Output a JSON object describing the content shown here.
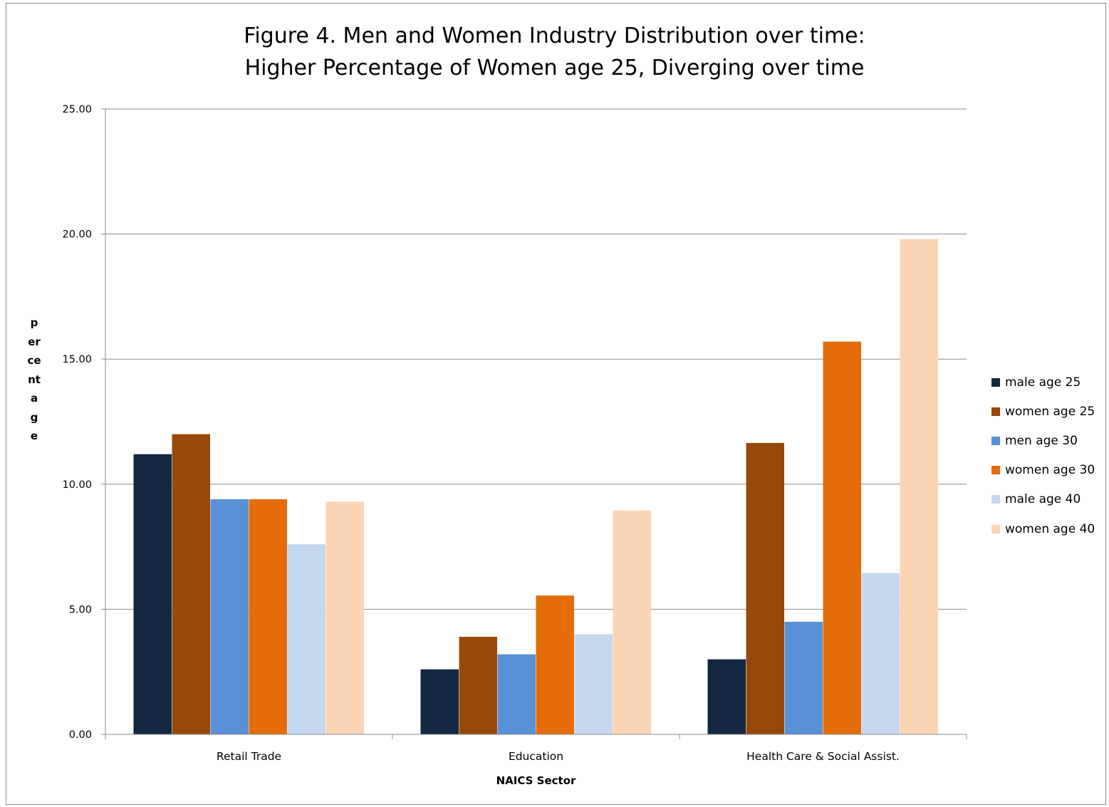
{
  "chart_data": {
    "type": "bar",
    "title": "Figure 4. Men and Women Industry Distribution over time: Higher Percentage of Women age 25, Diverging over time",
    "title_lines": [
      "Figure 4. Men and Women Industry Distribution over time:",
      "Higher Percentage of Women age 25, Diverging over time"
    ],
    "xlabel": "NAICS Sector",
    "ylabel": "percentage",
    "ylim": [
      0,
      25
    ],
    "yticks": [
      "0.00",
      "5.00",
      "10.00",
      "15.00",
      "20.00",
      "25.00"
    ],
    "grid": true,
    "legend_position": "right",
    "categories": [
      "Retail Trade",
      "Education",
      "Health Care & Social Assist."
    ],
    "series": [
      {
        "name": "male age 25",
        "color": "#132740",
        "values": [
          11.2,
          2.6,
          3.0
        ]
      },
      {
        "name": "women age 25",
        "color": "#98480a",
        "values": [
          12.0,
          3.9,
          11.65
        ]
      },
      {
        "name": "men age 30",
        "color": "#5a90d6",
        "values": [
          9.4,
          3.2,
          4.5
        ]
      },
      {
        "name": "women age 30",
        "color": "#e46c0a",
        "values": [
          9.4,
          5.55,
          15.7
        ]
      },
      {
        "name": "male age 40",
        "color": "#c6d8ef",
        "values": [
          7.6,
          4.0,
          6.45
        ]
      },
      {
        "name": "women age 40",
        "color": "#fbd5b5",
        "values": [
          9.3,
          8.95,
          19.8
        ]
      }
    ]
  }
}
